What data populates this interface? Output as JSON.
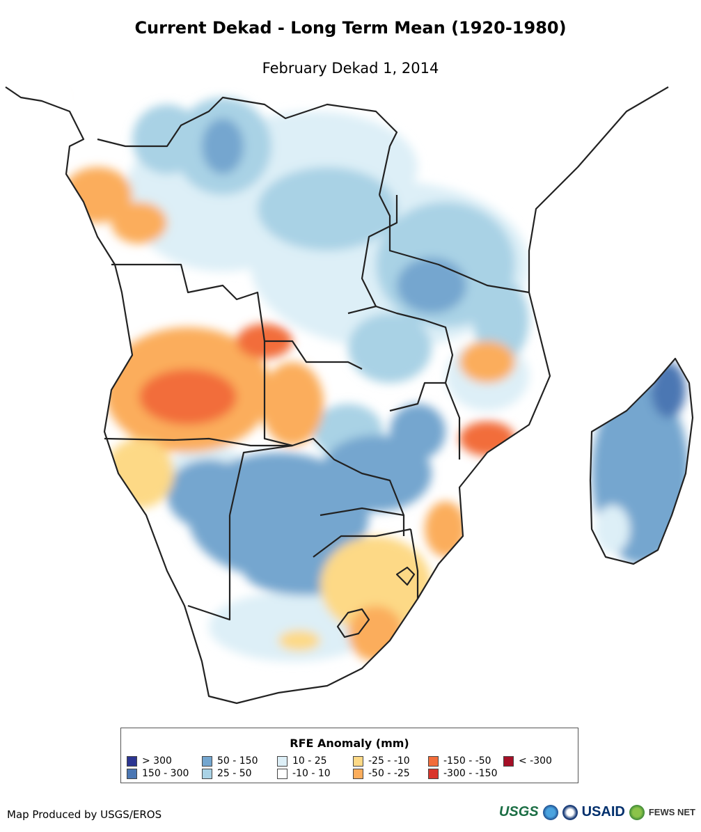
{
  "title": "Current Dekad - Long Term Mean (1920-1980)",
  "subtitle": "February Dekad 1, 2014",
  "legend": {
    "title": "RFE Anomaly (mm)",
    "items": [
      {
        "label": "> 300",
        "color": "#2b3591"
      },
      {
        "label": "150 - 300",
        "color": "#4b77b3"
      },
      {
        "label": "50 - 150",
        "color": "#74a6cf"
      },
      {
        "label": "25 - 50",
        "color": "#a9d2e5"
      },
      {
        "label": "10 - 25",
        "color": "#ddeff7"
      },
      {
        "label": "-10 - 10",
        "color": "#ffffff"
      },
      {
        "label": "-25 - -10",
        "color": "#fdd986"
      },
      {
        "label": "-50 - -25",
        "color": "#fbad5c"
      },
      {
        "label": "-150 - -50",
        "color": "#f26d3b"
      },
      {
        "label": "-300 - -150",
        "color": "#d9352b"
      },
      {
        "label": "< -300",
        "color": "#a50f26"
      }
    ]
  },
  "credit": "Map Produced by USGS/EROS",
  "logos": {
    "usgs": "USGS",
    "usaid": "USAID",
    "fews": "FEWS NET"
  }
}
